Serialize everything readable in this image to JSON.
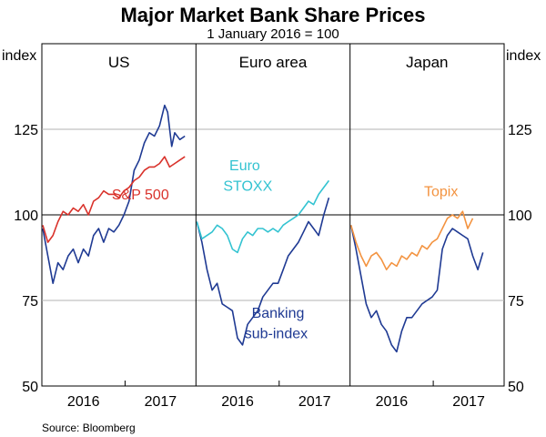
{
  "chart_data": {
    "type": "line",
    "title": "Major Market Bank Share Prices",
    "subtitle": "1 January 2016 = 100",
    "ylabel_left": "index",
    "ylabel_right": "index",
    "ylim": [
      50,
      150
    ],
    "yticks": [
      50,
      75,
      100,
      125
    ],
    "x_tick_labels": [
      "2016",
      "2017"
    ],
    "source": "Source:   Bloomberg",
    "colors": {
      "navy": "#1f3a93",
      "red": "#d9322b",
      "cyan": "#33c3d1",
      "orange": "#f39340"
    },
    "panels": [
      {
        "name": "US",
        "xlim": [
          0,
          15
        ],
        "series": [
          {
            "name": "Banking sub-index",
            "color": "#1f3a93",
            "x": [
              0,
              0.5,
              1,
              1.5,
              2,
              2.5,
              3,
              3.5,
              4,
              4.5,
              5,
              5.5,
              6,
              6.5,
              7,
              7.5,
              8,
              8.5,
              9,
              9.5,
              10,
              10.5,
              11,
              11.5,
              12,
              12.3,
              12.7,
              13,
              13.5,
              14
            ],
            "values": [
              96,
              88,
              80,
              86,
              84,
              88,
              90,
              86,
              90,
              88,
              94,
              96,
              92,
              96,
              95,
              97,
              100,
              104,
              113,
              116,
              121,
              124,
              123,
              126,
              132,
              130,
              120,
              124,
              122,
              123
            ]
          },
          {
            "name": "S&P 500",
            "color": "#d9322b",
            "x": [
              0,
              0.5,
              1,
              1.5,
              2,
              2.5,
              3,
              3.5,
              4,
              4.5,
              5,
              5.5,
              6,
              6.5,
              7,
              7.5,
              8,
              8.5,
              9,
              9.5,
              10,
              10.5,
              11,
              11.5,
              12,
              12.5,
              13,
              13.5,
              14
            ],
            "values": [
              97,
              92,
              94,
              98,
              101,
              100,
              102,
              101,
              103,
              100,
              104,
              105,
              107,
              106,
              106,
              105,
              107,
              108,
              110,
              111,
              113,
              114,
              114,
              115,
              117,
              114,
              115,
              116,
              117
            ]
          }
        ],
        "annotations": [
          {
            "text": "S&P 500",
            "color": "#d9322b",
            "x": 6.8,
            "y": 104.5
          }
        ]
      },
      {
        "name": "Euro area",
        "xlim": [
          0,
          15
        ],
        "series": [
          {
            "name": "Banking sub-index",
            "color": "#1f3a93",
            "x": [
              0,
              0.5,
              1,
              1.5,
              2,
              2.5,
              3,
              3.5,
              4,
              4.5,
              5,
              5.5,
              6,
              6.5,
              7,
              7.5,
              8,
              8.5,
              9,
              9.5,
              10,
              10.5,
              11,
              11.5,
              12,
              12.5,
              13
            ],
            "values": [
              98,
              92,
              84,
              78,
              80,
              74,
              73,
              72,
              64,
              62,
              68,
              70,
              72,
              76,
              78,
              80,
              80,
              84,
              88,
              90,
              92,
              95,
              98,
              96,
              94,
              100,
              105
            ]
          },
          {
            "name": "Euro STOXX",
            "color": "#33c3d1",
            "x": [
              0,
              0.5,
              1,
              1.5,
              2,
              2.5,
              3,
              3.5,
              4,
              4.5,
              5,
              5.5,
              6,
              6.5,
              7,
              7.5,
              8,
              8.5,
              9,
              9.5,
              10,
              10.5,
              11,
              11.5,
              12,
              12.5,
              13
            ],
            "values": [
              98,
              93,
              94,
              95,
              97,
              96,
              94,
              90,
              89,
              93,
              95,
              94,
              96,
              96,
              95,
              96,
              95,
              97,
              98,
              99,
              100,
              102,
              104,
              103,
              106,
              108,
              110
            ]
          }
        ],
        "annotations": [
          {
            "text": "Euro",
            "color": "#33c3d1",
            "x": 3.2,
            "y": 113
          },
          {
            "text": "STOXX",
            "color": "#33c3d1",
            "x": 2.6,
            "y": 107
          },
          {
            "text": "Banking",
            "color": "#1f3a93",
            "x": 5.4,
            "y": 70
          },
          {
            "text": "sub-index",
            "color": "#1f3a93",
            "x": 4.7,
            "y": 64
          }
        ]
      },
      {
        "name": "Japan",
        "xlim": [
          0,
          15
        ],
        "series": [
          {
            "name": "Banking sub-index",
            "color": "#1f3a93",
            "x": [
              0,
              0.5,
              1,
              1.5,
              2,
              2.5,
              3,
              3.5,
              4,
              4.5,
              5,
              5.5,
              6,
              6.5,
              7,
              7.5,
              8,
              8.5,
              9,
              9.5,
              10,
              10.5,
              11,
              11.5,
              12,
              12.5,
              13
            ],
            "values": [
              97,
              90,
              82,
              74,
              70,
              72,
              68,
              66,
              62,
              60,
              66,
              70,
              70,
              72,
              74,
              75,
              76,
              78,
              90,
              94,
              96,
              95,
              94,
              93,
              88,
              84,
              89
            ]
          },
          {
            "name": "Topix",
            "color": "#f39340",
            "x": [
              0,
              0.5,
              1,
              1.5,
              2,
              2.5,
              3,
              3.5,
              4,
              4.5,
              5,
              5.5,
              6,
              6.5,
              7,
              7.5,
              8,
              8.5,
              9,
              9.5,
              10,
              10.5,
              11,
              11.5,
              12
            ],
            "values": [
              97,
              92,
              88,
              85,
              88,
              89,
              87,
              84,
              86,
              85,
              88,
              87,
              89,
              88,
              91,
              90,
              92,
              93,
              96,
              99,
              100,
              99,
              101,
              96,
              99
            ]
          }
        ],
        "annotations": [
          {
            "text": "Topix",
            "color": "#f39340",
            "x": 7.2,
            "y": 105.5
          }
        ]
      }
    ]
  }
}
